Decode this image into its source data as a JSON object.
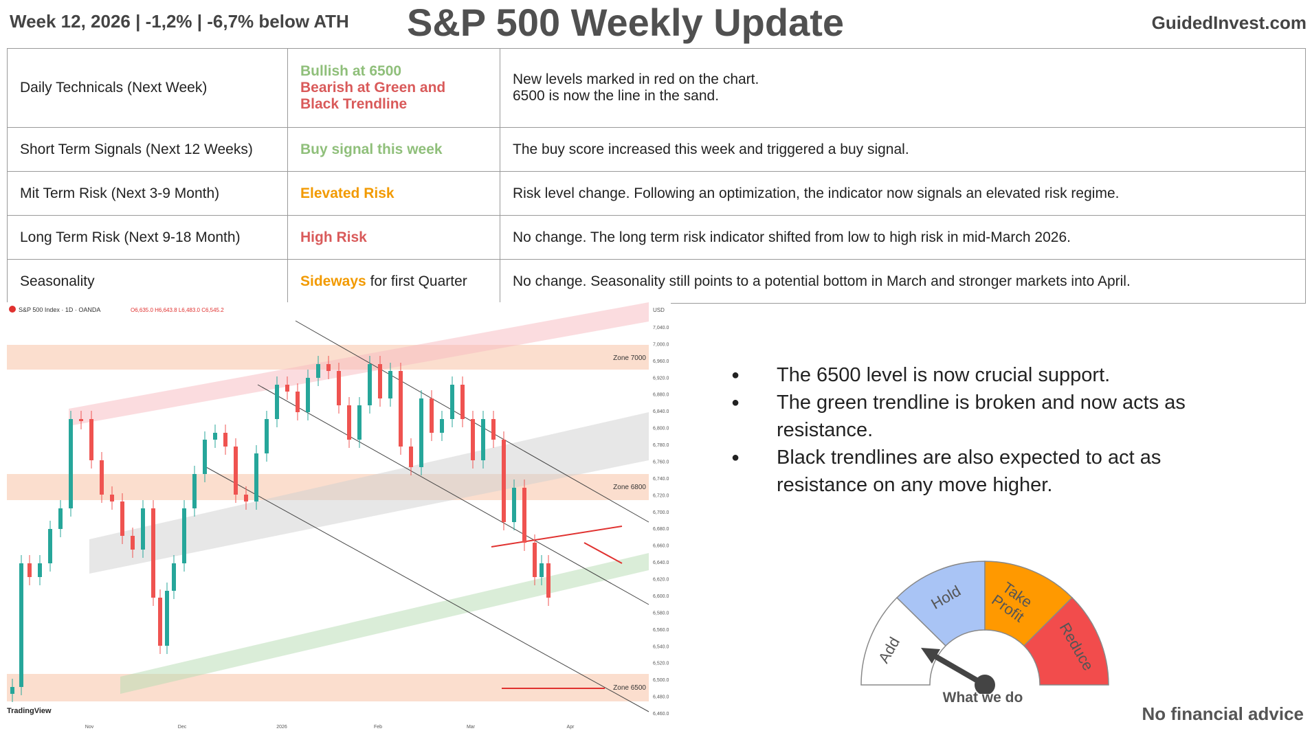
{
  "header": {
    "left": "Week 12, 2026 | -1,2% | -6,7% below ATH",
    "title": "S&P 500 Weekly Update",
    "right": "GuidedInvest.com"
  },
  "table": {
    "rows": [
      {
        "label": "Daily Technicals (Next Week)",
        "signal_lines": [
          "Bullish at 6500",
          "Bearish at Green and Black Trendline"
        ],
        "signal_suffix": "",
        "note": "New levels marked in red on the chart.\n6500 is now the line in the sand."
      },
      {
        "label": "Short Term Signals (Next 12 Weeks)",
        "signal": "Buy signal this week",
        "signal_suffix": "",
        "note": "The buy score increased this week and triggered a buy signal."
      },
      {
        "label": "Mit Term Risk (Next 3-9 Month)",
        "signal": "Elevated Risk",
        "signal_suffix": "",
        "note": "Risk level change.  Following an optimization, the indicator now signals an elevated risk regime."
      },
      {
        "label": "Long Term Risk (Next 9-18 Month)",
        "signal": "High Risk",
        "signal_suffix": "",
        "note": "No change. The long term risk indicator shifted from low to high risk in mid-March 2026."
      },
      {
        "label": "Seasonality",
        "signal": "Sideways",
        "signal_suffix": " for first Quarter",
        "note": "No change. Seasonality still points to a potential bottom in March and stronger markets into April."
      }
    ],
    "colors": {
      "green": "#8fbf7a",
      "red": "#d95a5a",
      "orange": "#f29a00"
    }
  },
  "chart": {
    "symbol_line": "S&P 500 Index · 1D · OANDA",
    "ohlc": "O6,635.0 H6,643.8 L6,483.0 C6,545.2",
    "currency": "USD",
    "zones": [
      "Zone 7000",
      "Zone 6800",
      "Zone 6500"
    ],
    "x_ticks": [
      "Nov",
      "Dec",
      "2026",
      "Feb",
      "Mar",
      "Apr"
    ],
    "y_ticks": [
      "7,040.0",
      "7,000.0",
      "6,960.0",
      "6,920.0",
      "6,880.0",
      "6,840.0",
      "6,800.0",
      "6,780.0",
      "6,760.0",
      "6,740.0",
      "6,720.0",
      "6,700.0",
      "6,680.0",
      "6,660.0",
      "6,640.0",
      "6,620.0",
      "6,600.0",
      "6,580.0",
      "6,560.0",
      "6,540.0",
      "6,520.0",
      "6,500.0",
      "6,480.0",
      "6,460.0"
    ],
    "brand": "TradingView"
  },
  "notes": [
    "The 6500 level is now crucial support.",
    "The green trendline is broken and now acts as resistance.",
    "Black trendlines are also expected to act as resistance on any move higher."
  ],
  "gauge": {
    "segments": [
      {
        "label": "Add",
        "color": "#ffffff"
      },
      {
        "label": "Hold",
        "color": "#a9c4f5"
      },
      {
        "label": "Take Profit",
        "color": "#ff9900"
      },
      {
        "label": "Reduce",
        "color": "#f24c4c"
      }
    ],
    "selected": "Add",
    "caption": "What we do"
  },
  "disclaimer": "No financial advice"
}
